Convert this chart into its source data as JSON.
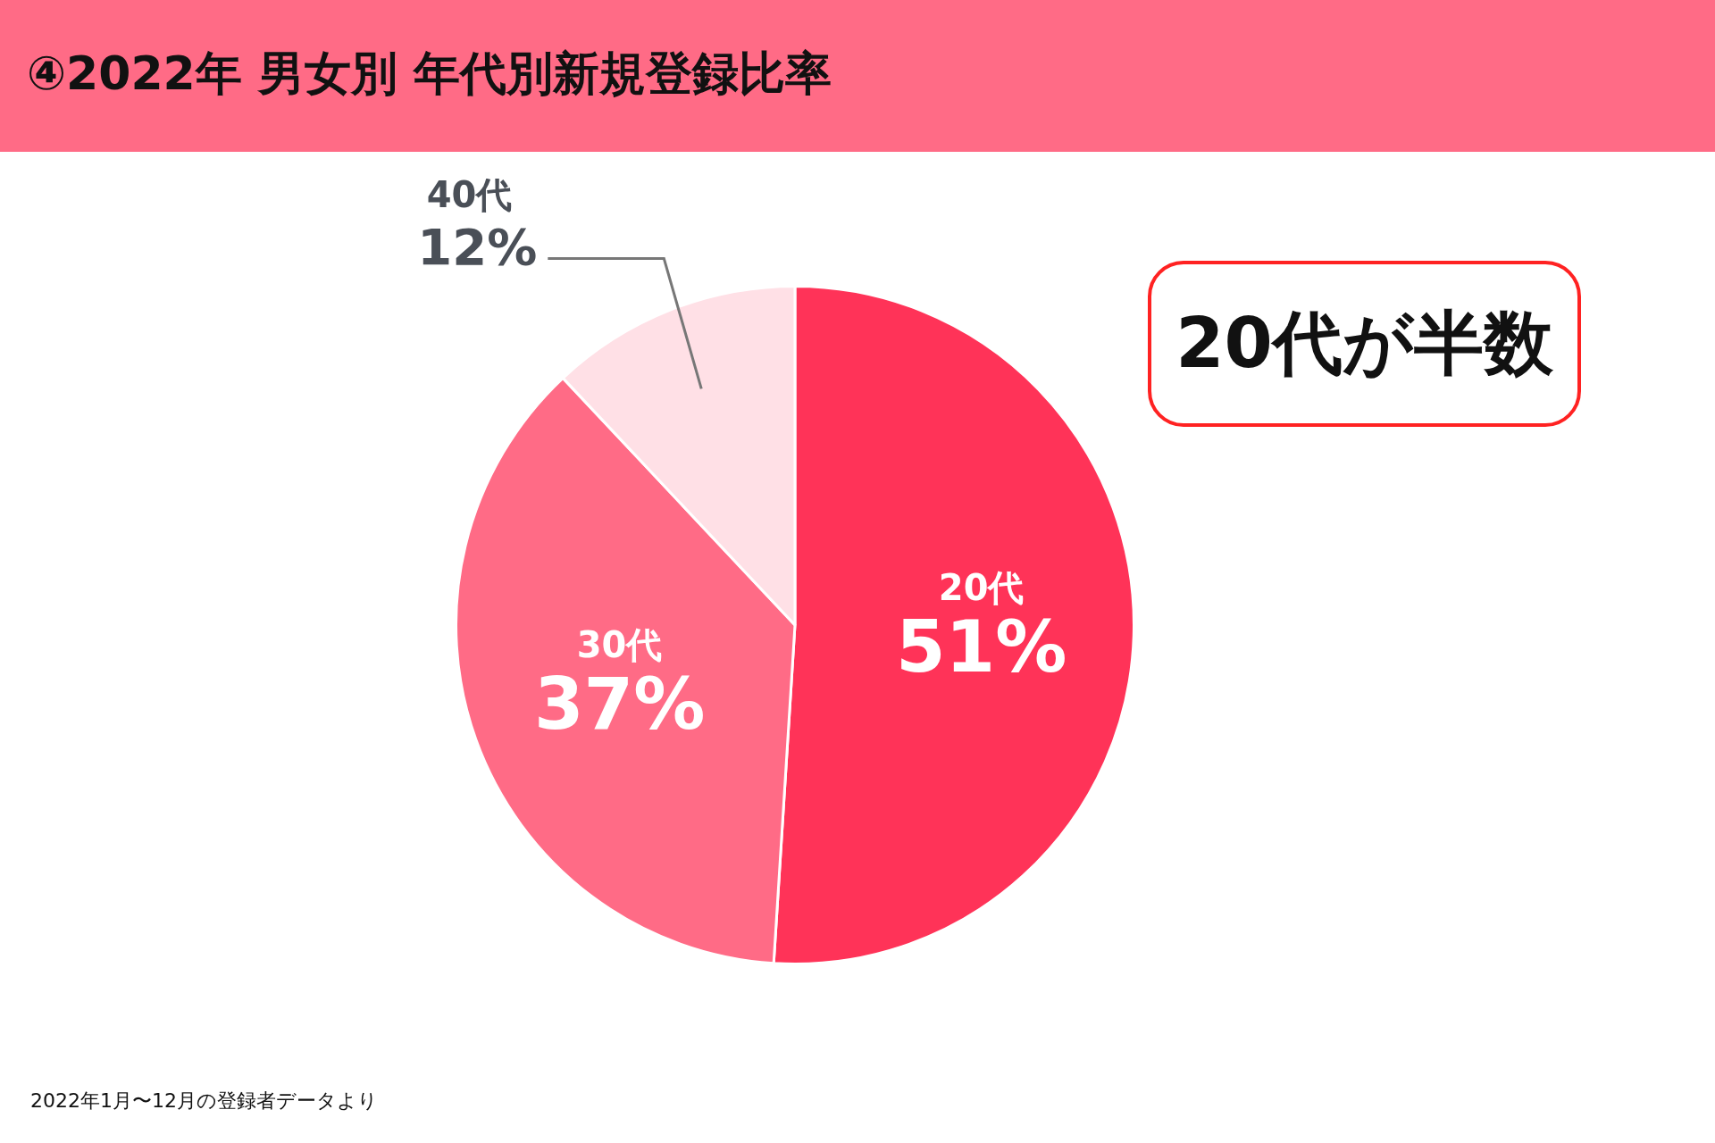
{
  "chart_data": {
    "type": "pie",
    "title": "④2022年 男女別 年代別新規登録比率",
    "categories": [
      "20代",
      "30代",
      "40代"
    ],
    "values": [
      51,
      37,
      12
    ],
    "value_labels": [
      "51%",
      "37%",
      "12%"
    ],
    "colors": [
      "#ff3358",
      "#ff6b86",
      "#ffe0e6"
    ],
    "annotations": [
      "20代が半数",
      "2022年1月〜12月の登録者データより"
    ]
  }
}
